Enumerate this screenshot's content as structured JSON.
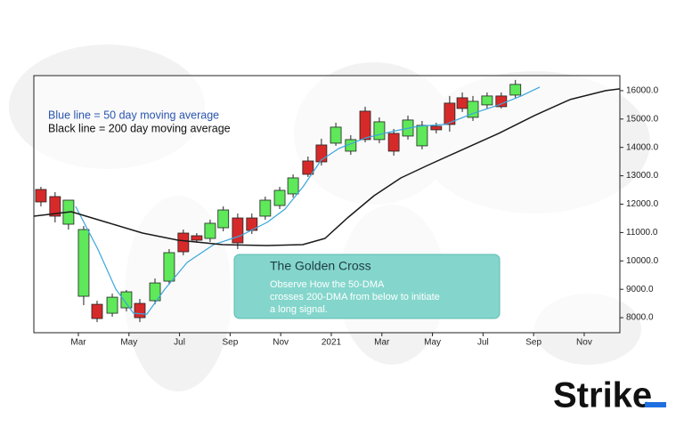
{
  "chart_data": {
    "type": "candlestick",
    "x": [
      0.52,
      1.08,
      1.61,
      2.21,
      2.74,
      3.34,
      3.9,
      4.43,
      5.03,
      5.59,
      6.15,
      6.68,
      7.21,
      7.73,
      8.3,
      8.86,
      9.39,
      9.96,
      10.49,
      11.08,
      11.61,
      12.18,
      12.77,
      13.34,
      13.9,
      14.47,
      15.03,
      15.59,
      16.15,
      16.68,
      17.18,
      17.6,
      18.16,
      18.72,
      19.28
    ],
    "open": [
      12518,
      12267,
      11294,
      8754,
      8471,
      8157,
      8346,
      8503,
      8597,
      9287,
      10981,
      10887,
      10793,
      11169,
      11514,
      11514,
      11577,
      11953,
      12361,
      13522,
      14086,
      14149,
      13867,
      15278,
      14275,
      14494,
      14400,
      14055,
      14745,
      15561,
      15749,
      15059,
      15498,
      15812,
      15843
    ],
    "high": [
      12612,
      12424,
      12141,
      11232,
      8597,
      8848,
      8974,
      8660,
      9381,
      10416,
      11106,
      10981,
      11451,
      11922,
      11671,
      11671,
      12267,
      12612,
      13051,
      13679,
      14306,
      14871,
      14431,
      15435,
      15059,
      14651,
      15122,
      14933,
      14871,
      15812,
      15937,
      15812,
      15937,
      15937,
      16376
    ],
    "low": [
      11922,
      11357,
      11106,
      8440,
      7844,
      8032,
      8220,
      7844,
      8471,
      9161,
      10197,
      10636,
      10667,
      11043,
      10416,
      10950,
      11451,
      11828,
      12236,
      12957,
      13365,
      14055,
      13741,
      14180,
      14149,
      13710,
      14275,
      13930,
      14494,
      14557,
      15247,
      14933,
      15373,
      15373,
      15718
    ],
    "close": [
      12079,
      11577,
      12141,
      11106,
      7969,
      8722,
      8911,
      8000,
      9224,
      10291,
      10322,
      10730,
      11326,
      11796,
      10636,
      11075,
      12141,
      12487,
      12926,
      13051,
      13490,
      14714,
      14275,
      14275,
      14902,
      13867,
      14965,
      14777,
      14620,
      14808,
      15373,
      15624,
      15812,
      15435,
      16220
    ],
    "up_color": "#5ee85a",
    "down_color": "#d62a2a",
    "series": [
      {
        "name": "Blue line = 50 day moving average",
        "color": "#3aa6dc",
        "x": [
          1.89,
          2.77,
          3.48,
          4.18,
          4.71,
          5.42,
          6.3,
          7.35,
          8.41,
          9.46,
          10.17,
          10.88,
          11.6,
          12.3,
          13.36,
          14.39,
          15.45,
          16.51,
          17.56,
          18.62,
          19.5,
          20.24
        ],
        "values": [
          11922,
          10416,
          9005,
          8157,
          8126,
          9005,
          9946,
          10573,
          10887,
          11357,
          11828,
          12612,
          13553,
          13961,
          14337,
          14557,
          14745,
          14808,
          15184,
          15498,
          15812,
          16125
        ]
      },
      {
        "name": "Black line = 200 day moving average",
        "color": "#1a1a1a",
        "x": [
          0.24,
          1.72,
          3.13,
          4.54,
          5.94,
          7.7,
          9.46,
          10.87,
          11.75,
          12.64,
          13.69,
          14.75,
          15.8,
          17.21,
          18.62,
          20.03,
          21.44,
          22.85,
          23.41
        ],
        "values": [
          11577,
          11734,
          11357,
          10981,
          10730,
          10573,
          10542,
          10573,
          10793,
          11514,
          12298,
          12926,
          13365,
          13930,
          14494,
          15122,
          15686,
          16000,
          16063
        ]
      }
    ],
    "xlim": [
      0.24,
      23.41
    ],
    "xticks": [
      {
        "value": 2,
        "label": "Mar"
      },
      {
        "value": 4,
        "label": "May"
      },
      {
        "value": 6,
        "label": "Jul"
      },
      {
        "value": 8,
        "label": "Sep"
      },
      {
        "value": 10,
        "label": "Nov"
      },
      {
        "value": 12,
        "label": "2021"
      },
      {
        "value": 14,
        "label": "Mar"
      },
      {
        "value": 16,
        "label": "May"
      },
      {
        "value": 18,
        "label": "Jul"
      },
      {
        "value": 20,
        "label": "Sep"
      },
      {
        "value": 22,
        "label": "Nov"
      }
    ],
    "ylim": [
      7470,
      16530
    ],
    "yticks": [
      {
        "value": 8000,
        "label": "8000.0"
      },
      {
        "value": 9000,
        "label": "9000.0"
      },
      {
        "value": 10000,
        "label": "10000.0"
      },
      {
        "value": 11000,
        "label": "11000.0"
      },
      {
        "value": 12000,
        "label": "12000.0"
      },
      {
        "value": 13000,
        "label": "13000.0"
      },
      {
        "value": 14000,
        "label": "14000.0"
      },
      {
        "value": 15000,
        "label": "15000.0"
      },
      {
        "value": 16000,
        "label": "16000.0"
      }
    ],
    "annotation": {
      "title": "The Golden Cross",
      "lines": [
        "Observe How the 50-DMA",
        "crosses 200-DMA from below to initiate",
        "a long signal."
      ]
    }
  },
  "brand": "Strike"
}
